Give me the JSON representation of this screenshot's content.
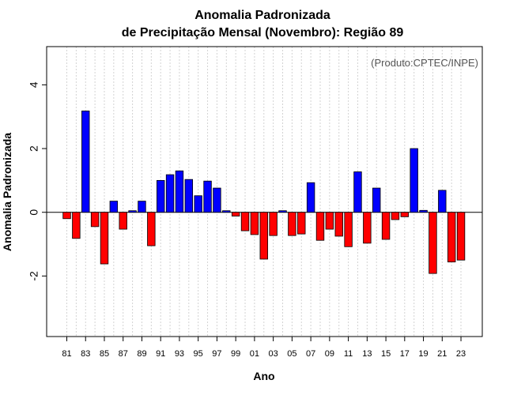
{
  "chart_data": {
    "type": "bar",
    "title": "Anomalia Padronizada",
    "subtitle": "de Precipitação Mensal (Novembro): Região 89",
    "xlabel": "Ano",
    "ylabel": "Anomalia Padronizada",
    "credit": "(Produto:CPTEC/INPE)",
    "ylim": [
      -3.9,
      5.2
    ],
    "yticks": [
      -2,
      0,
      2,
      4
    ],
    "grid": "vertical-dotted",
    "colors": {
      "positive": "#0000ff",
      "negative": "#ff0000",
      "border": "#000000",
      "grid": "#d3d3d3"
    },
    "categories": [
      "1981",
      "1982",
      "1983",
      "1984",
      "1985",
      "1986",
      "1987",
      "1988",
      "1989",
      "1990",
      "1991",
      "1992",
      "1993",
      "1994",
      "1995",
      "1996",
      "1997",
      "1998",
      "1999",
      "2000",
      "2001",
      "2002",
      "2003",
      "2004",
      "2005",
      "2006",
      "2007",
      "2008",
      "2009",
      "2010",
      "2011",
      "2012",
      "2013",
      "2014",
      "2015",
      "2016",
      "2017",
      "2018",
      "2019",
      "2020",
      "2021",
      "2022",
      "2023"
    ],
    "tick_labels": [
      "81",
      "83",
      "85",
      "87",
      "89",
      "91",
      "93",
      "95",
      "97",
      "99",
      "01",
      "03",
      "05",
      "07",
      "09",
      "11",
      "13",
      "15",
      "17",
      "19",
      "21",
      "23"
    ],
    "values": [
      -0.2,
      -0.82,
      3.18,
      -0.45,
      -1.62,
      0.35,
      -0.53,
      0.05,
      0.35,
      -1.05,
      1.0,
      1.18,
      1.3,
      1.03,
      0.52,
      0.98,
      0.76,
      0.05,
      -0.12,
      -0.58,
      -0.7,
      -1.47,
      -0.73,
      0.05,
      -0.73,
      -0.68,
      0.93,
      -0.88,
      -0.53,
      -0.75,
      -1.08,
      1.27,
      -0.97,
      0.76,
      -0.85,
      -0.23,
      -0.14,
      2.0,
      0.06,
      -1.92,
      0.69,
      -1.56,
      -1.5
    ]
  }
}
